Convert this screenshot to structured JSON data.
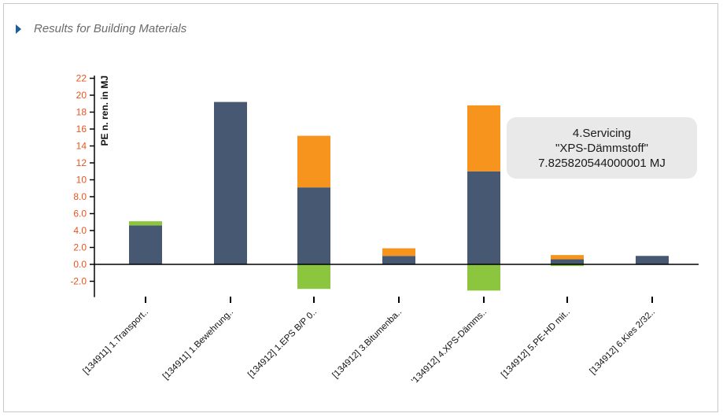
{
  "section": {
    "title": "Results for Building Materials",
    "icon": "caret-right-icon"
  },
  "tooltip": {
    "line1": "4.Servicing",
    "line2": "\"XPS-Dämmstoff\"",
    "line3": "7.825820544000001 MJ"
  },
  "colors": {
    "base": "#465872",
    "servicing": "#f7941d",
    "negative": "#8cc63f",
    "tick_label": "#e8541e",
    "axis": "#000000"
  },
  "chart_data": {
    "type": "bar",
    "stacked": true,
    "ylabel": "PE n. ren. in MJ",
    "ylim": [
      -3.5,
      22.5
    ],
    "yticks": [
      "22",
      "20",
      "18",
      "16",
      "14",
      "12",
      "10",
      "8.0",
      "6.0",
      "4.0",
      "2.0",
      "0.0",
      "-2.0"
    ],
    "ytick_values": [
      22,
      20,
      18,
      16,
      14,
      12,
      10,
      8,
      6,
      4,
      2,
      0,
      -2
    ],
    "categories": [
      "[134911] 1.Transport..",
      "[134911] 1.Bewehrung..",
      "[134912] 1.EPS B/P 0..",
      "[134912] 3.Bitumenba..",
      "'134912] 4.XPS-Dämms..",
      "[134912] 5.PE-HD mit..",
      "[134912] 6.Kies 2/32.."
    ],
    "series": [
      {
        "key": "base",
        "values": [
          4.6,
          19.2,
          9.1,
          1.0,
          11.0,
          0.6,
          1.0
        ]
      },
      {
        "key": "servicing",
        "values": [
          0,
          0,
          6.1,
          0.9,
          7.8,
          0.5,
          0
        ]
      },
      {
        "key": "negative",
        "values": [
          0.5,
          0,
          -2.9,
          0,
          -3.1,
          -0.2,
          0
        ]
      }
    ]
  }
}
